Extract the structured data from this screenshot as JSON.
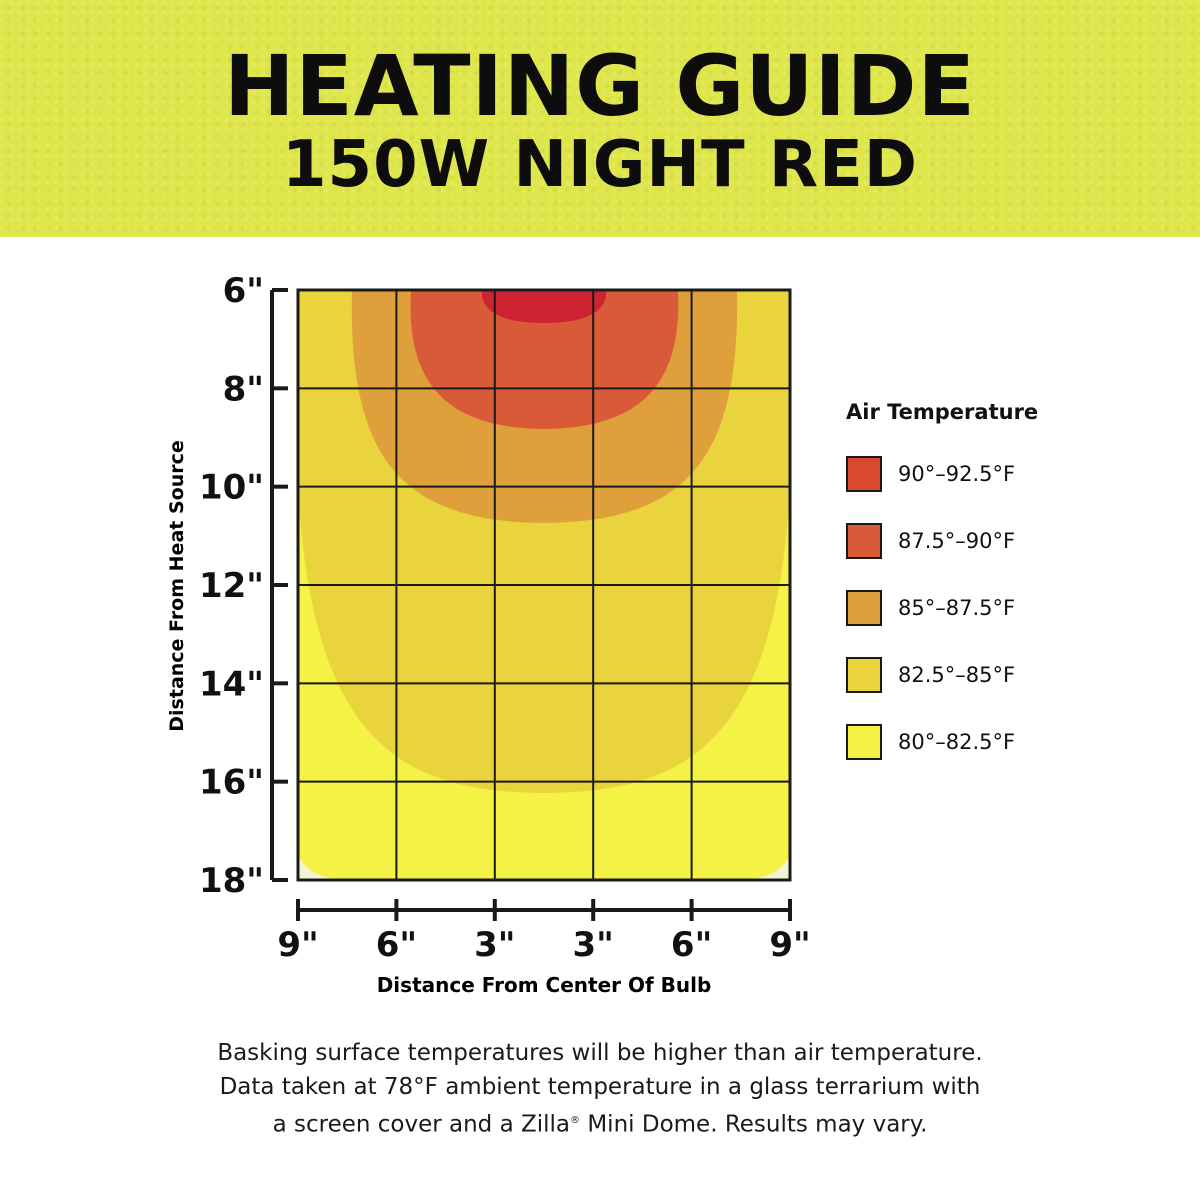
{
  "header": {
    "title": "HEATING GUIDE",
    "subtitle": "150W NIGHT RED",
    "background": "#dfe64a"
  },
  "chart_data": {
    "type": "heatmap",
    "ylabel": "Distance From Heat Source",
    "xlabel": "Distance From Center Of Bulb",
    "y_ticks": [
      "6\"",
      "8\"",
      "10\"",
      "12\"",
      "14\"",
      "16\"",
      "18\""
    ],
    "x_ticks": [
      "9\"",
      "6\"",
      "3\"",
      "3\"",
      "6\"",
      "9\""
    ],
    "ylim": [
      6,
      18
    ],
    "xlim": [
      -9,
      9
    ],
    "grid": true,
    "legend_position": "right",
    "legend_title": "Air Temperature",
    "zones": [
      {
        "label": "90°–92.5°F",
        "color": "#d8492f",
        "min_f": 90,
        "max_f": 92.5
      },
      {
        "label": "87.5°–90°F",
        "color": "#d95a38",
        "min_f": 87.5,
        "max_f": 90
      },
      {
        "label": "85°–87.5°F",
        "color": "#dfa03b",
        "min_f": 85,
        "max_f": 87.5
      },
      {
        "label": "82.5°–85°F",
        "color": "#ead43e",
        "min_f": 82.5,
        "max_f": 85
      },
      {
        "label": "80°–82.5°F",
        "color": "#f4f245",
        "min_f": 80,
        "max_f": 82.5
      }
    ],
    "hotspot_color": "#cc2431"
  },
  "note": {
    "line1": "Basking surface temperatures will be higher than air temperature.",
    "line2": "Data taken at 78°F ambient temperature in a glass terrarium with",
    "line3_a": "a screen cover and a Zilla",
    "line3_reg": "®",
    "line3_b": " Mini Dome. Results may vary."
  }
}
